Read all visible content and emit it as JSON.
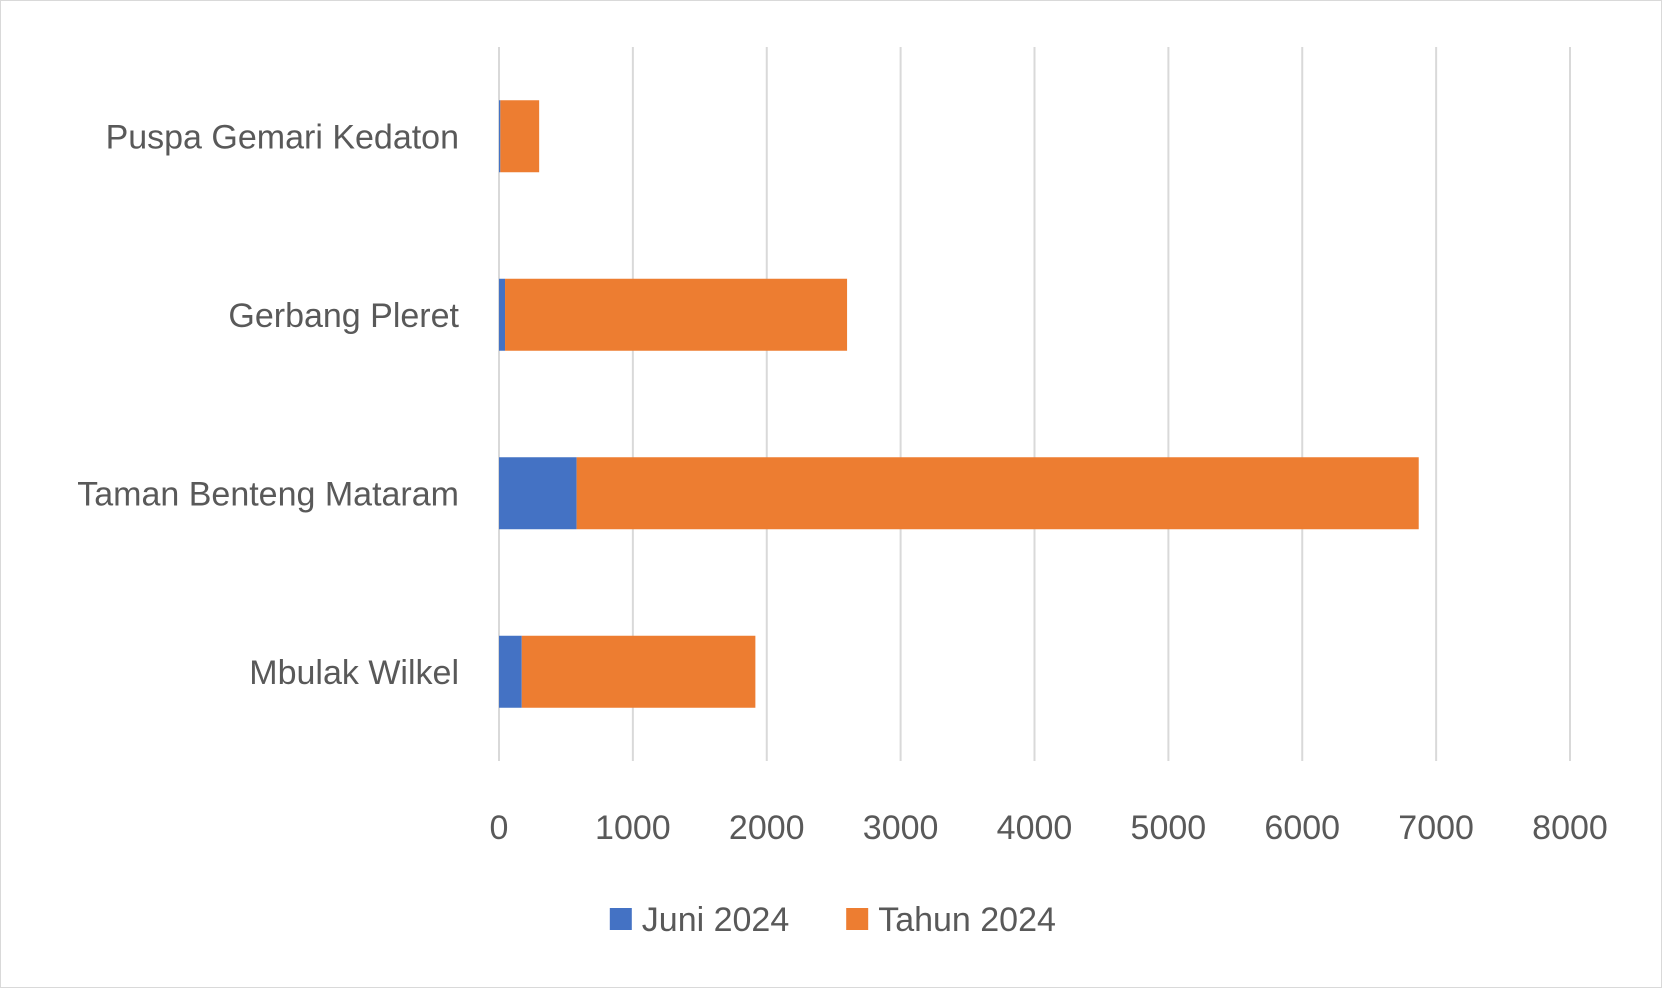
{
  "chart_data": {
    "type": "bar",
    "orientation": "horizontal",
    "stacked": true,
    "categories": [
      "Puspa Gemari Kedaton",
      "Gerbang Pleret",
      "Taman Benteng Mataram",
      "Mbulak Wilkel"
    ],
    "series": [
      {
        "name": "Juni 2024",
        "color": "#4472c4",
        "values": [
          10,
          45,
          580,
          170
        ]
      },
      {
        "name": "Tahun 2024",
        "color": "#ed7d31",
        "values": [
          290,
          2555,
          6290,
          1745
        ]
      }
    ],
    "xlim": [
      0,
      8000
    ],
    "xticks": [
      "0",
      "1000",
      "2000",
      "3000",
      "4000",
      "5000",
      "6000",
      "7000",
      "8000"
    ],
    "grid": true,
    "legend": "bottom",
    "title": "",
    "xlabel": "",
    "ylabel": ""
  }
}
